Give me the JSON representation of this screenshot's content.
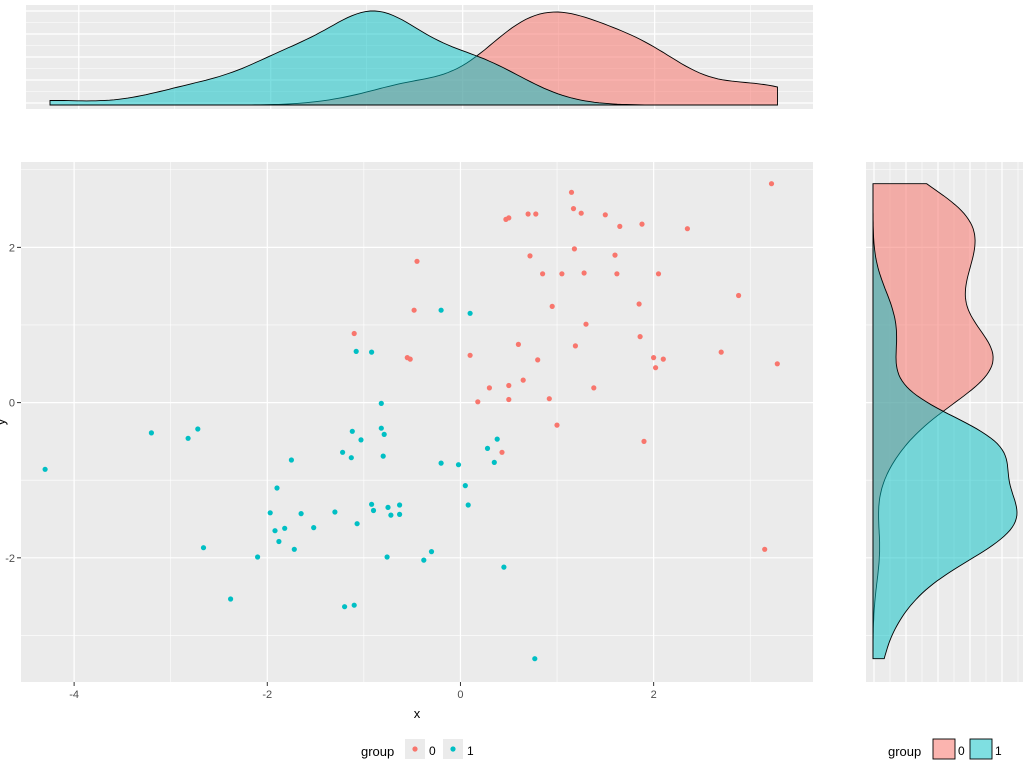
{
  "chart_data": {
    "type": "scatter",
    "x_axis": {
      "label": "x",
      "range": [
        -4.55,
        3.65
      ],
      "ticks": [
        -4,
        -2,
        0,
        2
      ],
      "tick_labels": [
        "-4",
        "-2",
        "0",
        "2"
      ]
    },
    "y_axis": {
      "label": "y",
      "range": [
        -3.6,
        3.1
      ],
      "ticks": [
        -2,
        0,
        2
      ],
      "tick_labels": [
        "-2",
        "0",
        "2"
      ]
    },
    "grid": true,
    "legend": {
      "title": "group",
      "placement": "bottom",
      "entries": [
        "0",
        "1"
      ]
    },
    "series": [
      {
        "name": "0",
        "color": "#F8766D",
        "points": [
          [
            -1.1,
            0.89
          ],
          [
            -0.55,
            0.58
          ],
          [
            -0.52,
            0.56
          ],
          [
            -0.48,
            1.19
          ],
          [
            -0.45,
            1.82
          ],
          [
            0.1,
            0.61
          ],
          [
            0.18,
            0.01
          ],
          [
            0.3,
            0.19
          ],
          [
            0.43,
            -0.64
          ],
          [
            0.47,
            2.36
          ],
          [
            0.5,
            2.38
          ],
          [
            0.5,
            0.22
          ],
          [
            0.5,
            0.04
          ],
          [
            0.6,
            0.75
          ],
          [
            0.65,
            0.29
          ],
          [
            0.7,
            2.43
          ],
          [
            0.72,
            1.89
          ],
          [
            0.78,
            2.43
          ],
          [
            0.8,
            0.55
          ],
          [
            0.85,
            1.66
          ],
          [
            0.92,
            0.05
          ],
          [
            0.95,
            1.24
          ],
          [
            1.0,
            -0.29
          ],
          [
            1.05,
            1.66
          ],
          [
            1.15,
            2.71
          ],
          [
            1.17,
            2.5
          ],
          [
            1.18,
            1.98
          ],
          [
            1.19,
            0.73
          ],
          [
            1.25,
            2.44
          ],
          [
            1.28,
            1.67
          ],
          [
            1.3,
            1.01
          ],
          [
            1.38,
            0.19
          ],
          [
            1.5,
            2.42
          ],
          [
            1.6,
            1.9
          ],
          [
            1.62,
            1.66
          ],
          [
            1.65,
            2.27
          ],
          [
            1.85,
            1.27
          ],
          [
            1.86,
            0.85
          ],
          [
            1.88,
            2.3
          ],
          [
            1.9,
            -0.5
          ],
          [
            2.0,
            0.58
          ],
          [
            2.02,
            0.45
          ],
          [
            2.05,
            1.66
          ],
          [
            2.1,
            0.56
          ],
          [
            2.35,
            2.24
          ],
          [
            2.7,
            0.65
          ],
          [
            2.88,
            1.38
          ],
          [
            3.15,
            -1.89
          ],
          [
            3.22,
            2.82
          ],
          [
            3.28,
            0.5
          ]
        ]
      },
      {
        "name": "1",
        "color": "#00BFC4",
        "points": [
          [
            -4.3,
            -0.86
          ],
          [
            -3.2,
            -0.39
          ],
          [
            -2.82,
            -0.46
          ],
          [
            -2.72,
            -0.34
          ],
          [
            -2.66,
            -1.87
          ],
          [
            -2.38,
            -2.53
          ],
          [
            -2.1,
            -1.99
          ],
          [
            -1.97,
            -1.42
          ],
          [
            -1.92,
            -1.65
          ],
          [
            -1.9,
            -1.1
          ],
          [
            -1.88,
            -1.79
          ],
          [
            -1.82,
            -1.62
          ],
          [
            -1.75,
            -0.74
          ],
          [
            -1.72,
            -1.89
          ],
          [
            -1.65,
            -1.43
          ],
          [
            -1.52,
            -1.61
          ],
          [
            -1.3,
            -1.41
          ],
          [
            -1.22,
            -0.64
          ],
          [
            -1.2,
            -2.63
          ],
          [
            -1.13,
            -0.71
          ],
          [
            -1.12,
            -0.37
          ],
          [
            -1.1,
            -2.61
          ],
          [
            -1.08,
            0.66
          ],
          [
            -1.07,
            -1.56
          ],
          [
            -1.03,
            -0.48
          ],
          [
            -0.92,
            0.65
          ],
          [
            -0.92,
            -1.31
          ],
          [
            -0.9,
            -1.39
          ],
          [
            -0.82,
            -0.01
          ],
          [
            -0.82,
            -0.33
          ],
          [
            -0.8,
            -0.69
          ],
          [
            -0.79,
            -0.41
          ],
          [
            -0.76,
            -1.99
          ],
          [
            -0.75,
            -1.35
          ],
          [
            -0.72,
            -1.45
          ],
          [
            -0.63,
            -1.32
          ],
          [
            -0.63,
            -1.44
          ],
          [
            -0.38,
            -2.03
          ],
          [
            -0.3,
            -1.92
          ],
          [
            -0.2,
            1.19
          ],
          [
            -0.2,
            -0.78
          ],
          [
            -0.02,
            -0.8
          ],
          [
            0.05,
            -1.07
          ],
          [
            0.08,
            -1.32
          ],
          [
            0.1,
            1.15
          ],
          [
            0.28,
            -0.59
          ],
          [
            0.35,
            -0.77
          ],
          [
            0.38,
            -0.47
          ],
          [
            0.45,
            -2.12
          ],
          [
            0.77,
            -3.3
          ]
        ]
      }
    ],
    "top_density": {
      "variable": "x",
      "x_range": [
        -4.3,
        3.28
      ]
    },
    "side_density": {
      "variable": "y",
      "y_range": [
        -3.3,
        2.82
      ]
    }
  }
}
